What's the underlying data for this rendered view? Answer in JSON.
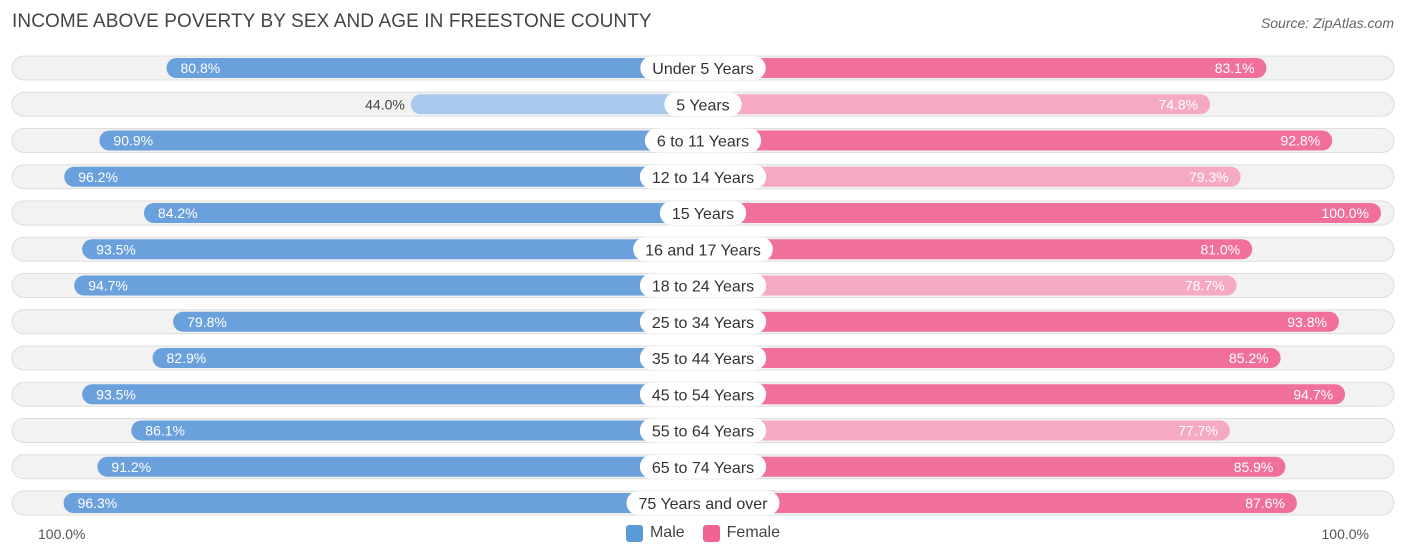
{
  "title": "INCOME ABOVE POVERTY BY SEX AND AGE IN FREESTONE COUNTY",
  "source": "Source: ZipAtlas.com",
  "axis": {
    "left_label": "100.0%",
    "right_label": "100.0%"
  },
  "legend": [
    {
      "label": "Male",
      "color": "#5b9bd5"
    },
    {
      "label": "Female",
      "color": "#f06292"
    }
  ],
  "colors": {
    "male_strong": "#6aa0dc",
    "male_light": "#a9c9ec",
    "female_strong": "#f0709b",
    "female_light": "#f6a9c3",
    "track": "#f2f2f2",
    "track_border": "#dddddd"
  },
  "chart_data": {
    "type": "bar",
    "orientation": "horizontal-diverging",
    "title": "INCOME ABOVE POVERTY BY SEX AND AGE IN FREESTONE COUNTY",
    "categories": [
      "Under 5 Years",
      "5 Years",
      "6 to 11 Years",
      "12 to 14 Years",
      "15 Years",
      "16 and 17 Years",
      "18 to 24 Years",
      "25 to 34 Years",
      "35 to 44 Years",
      "45 to 54 Years",
      "55 to 64 Years",
      "65 to 74 Years",
      "75 Years and over"
    ],
    "series": [
      {
        "name": "Male",
        "values": [
          80.8,
          44.0,
          90.9,
          96.2,
          84.2,
          93.5,
          94.7,
          79.8,
          82.9,
          93.5,
          86.1,
          91.2,
          96.3
        ],
        "labels": [
          "80.8%",
          "44.0%",
          "90.9%",
          "96.2%",
          "84.2%",
          "93.5%",
          "94.7%",
          "79.8%",
          "82.9%",
          "93.5%",
          "86.1%",
          "91.2%",
          "96.3%"
        ]
      },
      {
        "name": "Female",
        "values": [
          83.1,
          74.8,
          92.8,
          79.3,
          100.0,
          81.0,
          78.7,
          93.8,
          85.2,
          94.7,
          77.7,
          85.9,
          87.6
        ],
        "labels": [
          "83.1%",
          "74.8%",
          "92.8%",
          "79.3%",
          "100.0%",
          "81.0%",
          "78.7%",
          "93.8%",
          "85.2%",
          "94.7%",
          "77.7%",
          "85.9%",
          "87.6%"
        ]
      }
    ],
    "xlim": [
      0,
      100
    ],
    "legend_position": "bottom-center"
  }
}
